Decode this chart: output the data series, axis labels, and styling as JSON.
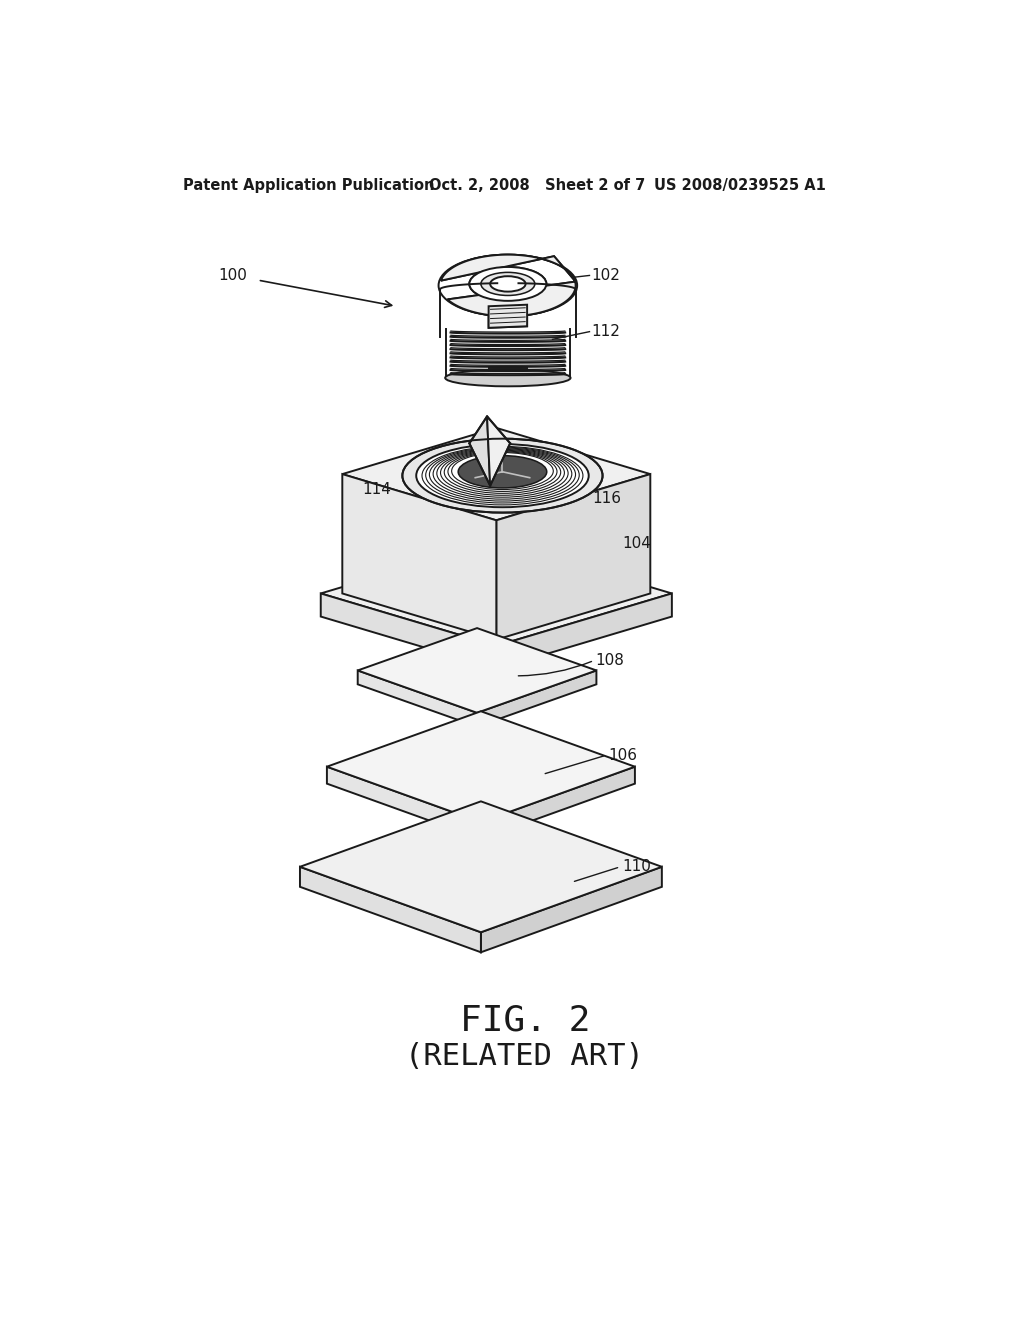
{
  "header_left": "Patent Application Publication",
  "header_mid": "Oct. 2, 2008   Sheet 2 of 7",
  "header_right": "US 2008/0239525 A1",
  "fig_label": "FIG. 2",
  "fig_sublabel": "(RELATED ART)",
  "label_100": "100",
  "label_102": "102",
  "label_104": "104",
  "label_106": "106",
  "label_108": "108",
  "label_110": "110",
  "label_112": "112",
  "label_114": "114",
  "label_116": "116",
  "bg_color": "#ffffff",
  "line_color": "#1a1a1a",
  "font_size_header": 10.5,
  "font_size_label": 11,
  "font_size_fig": 26,
  "font_size_fig_sub": 22
}
